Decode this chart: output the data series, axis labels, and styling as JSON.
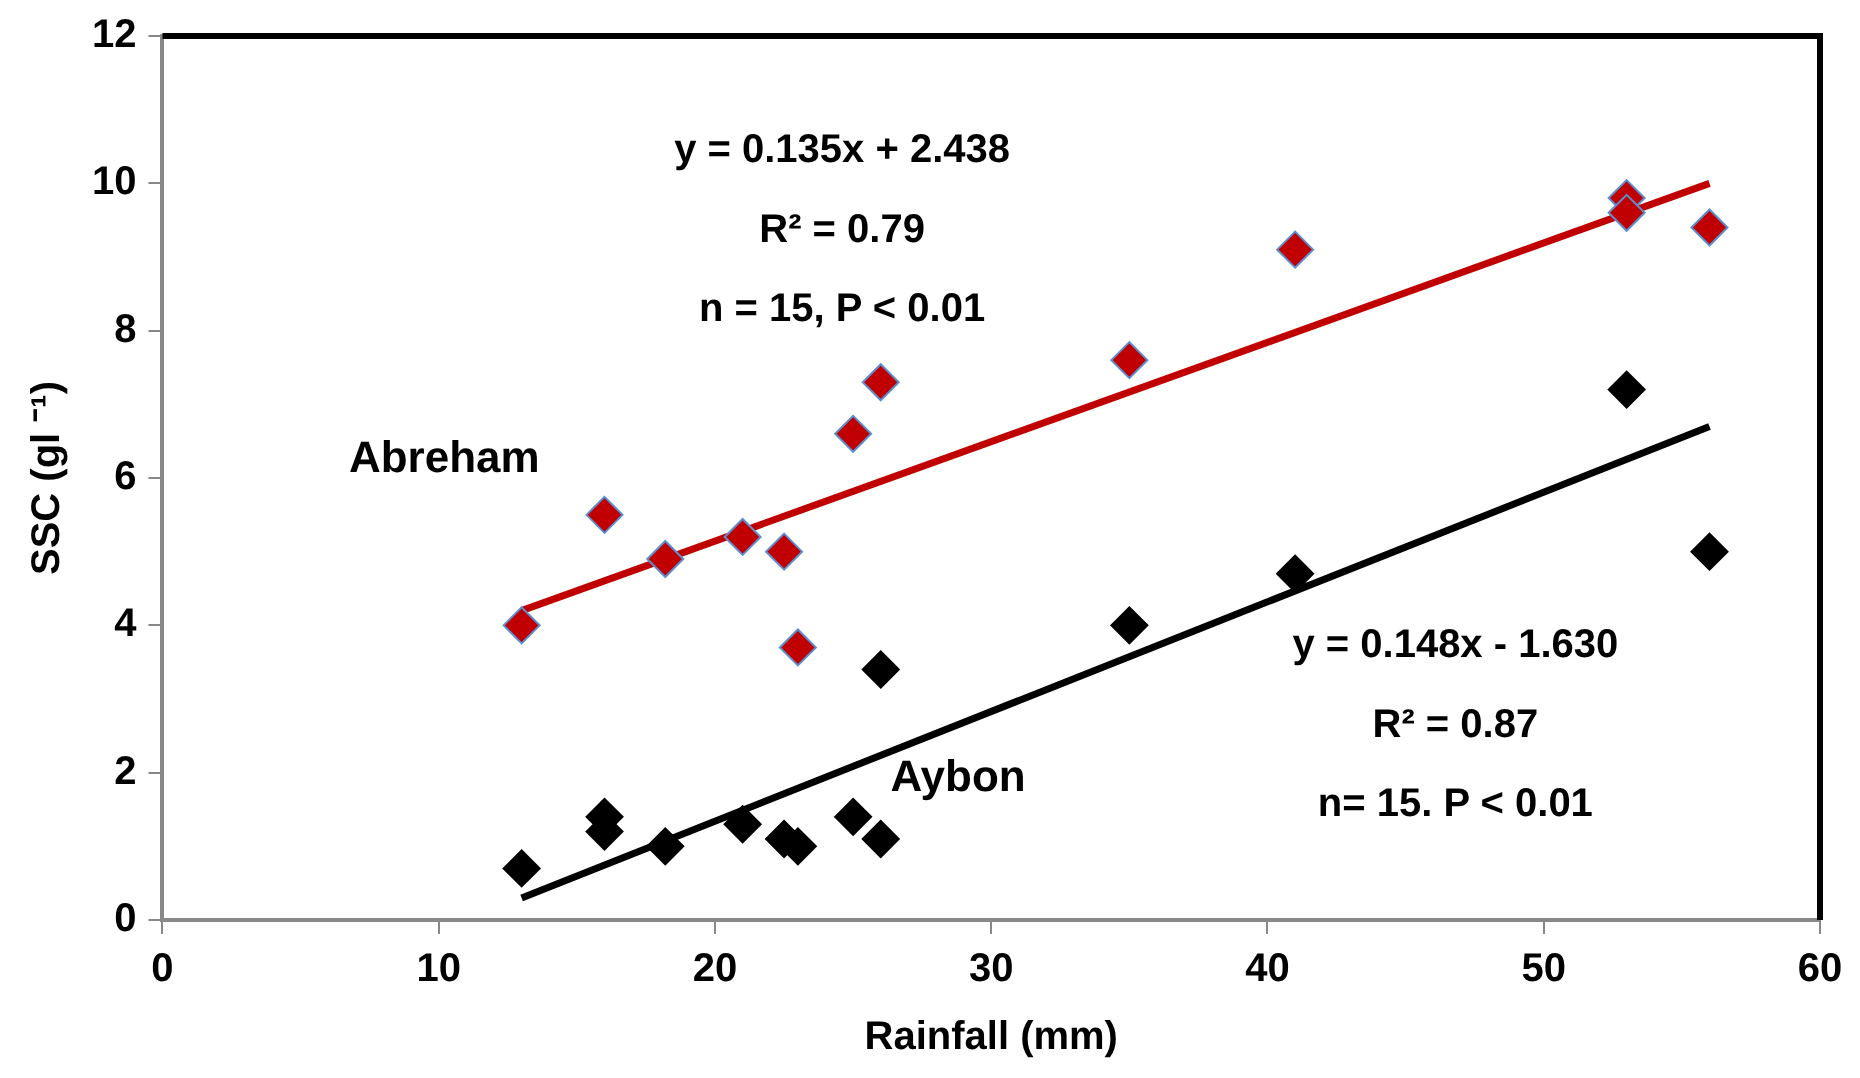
{
  "chart_data": {
    "type": "scatter",
    "xlabel": "Rainfall (mm)",
    "ylabel": "SSC (gl ⁻¹)",
    "xlim": [
      0,
      60
    ],
    "xticks": [
      0,
      10,
      20,
      30,
      40,
      50,
      60
    ],
    "ylim": [
      0,
      12
    ],
    "yticks": [
      0,
      2,
      4,
      6,
      8,
      10,
      12
    ],
    "grid": false,
    "legend": false,
    "marker": "diamond",
    "series": [
      {
        "name": "Abreham",
        "color": "#c00000",
        "x": [
          13,
          16,
          18.2,
          21,
          22.5,
          23,
          25,
          26,
          35,
          41,
          53,
          53,
          56
        ],
        "values": [
          4.0,
          5.5,
          4.9,
          5.2,
          5.0,
          3.7,
          6.6,
          7.3,
          7.6,
          9.1,
          9.8,
          9.6,
          9.4
        ]
      },
      {
        "name": "Aybon",
        "color": "#000000",
        "x": [
          13,
          16,
          16,
          18.2,
          21,
          22.5,
          23,
          25,
          26,
          26,
          35,
          41,
          53,
          56
        ],
        "values": [
          0.7,
          1.4,
          1.2,
          1.0,
          1.3,
          1.1,
          1.0,
          1.4,
          1.1,
          3.4,
          4.0,
          4.7,
          7.2,
          5.0
        ]
      },
      {
        "type": "line",
        "color": "#c00000",
        "x": [
          13,
          56
        ],
        "values": [
          4.2,
          10.0
        ],
        "marker": "none"
      },
      {
        "type": "line",
        "color": "#000000",
        "x": [
          13,
          56
        ],
        "values": [
          0.3,
          6.7
        ],
        "marker": "none"
      }
    ],
    "annotations": [
      "y = 0.135x + 2.438",
      "R² = 0.79",
      "n = 15, P < 0.01",
      "y = 0.148x - 1.630",
      "R² = 0.87",
      "n= 15. P < 0.01"
    ]
  }
}
